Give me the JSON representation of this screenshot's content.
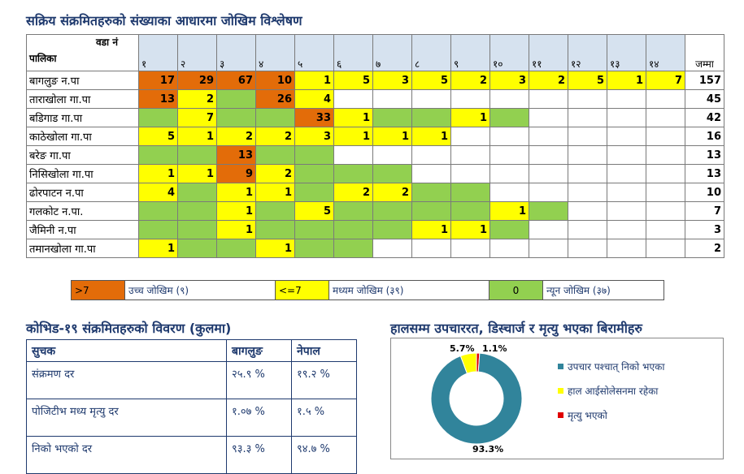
{
  "main_title": "सक्रिय संक्रमितहरुको संख्याका आधारमा जोखिम विश्लेषण",
  "corner": {
    "ward": "वडा नं",
    "palika": "पालिका"
  },
  "ward_numbers": [
    "१",
    "२",
    "३",
    "४",
    "५",
    "६",
    "७",
    "८",
    "९",
    "१०",
    "११",
    "१२",
    "१३",
    "१४"
  ],
  "total_label": "जम्मा",
  "colors": {
    "high": "#e36c09",
    "medium": "#ffff00",
    "low": "#92d050"
  },
  "rows": [
    {
      "name": "बागलुङ न.पा",
      "total": "157",
      "cells": [
        [
          "o",
          "17"
        ],
        [
          "o",
          "29"
        ],
        [
          "o",
          "67"
        ],
        [
          "o",
          "10"
        ],
        [
          "y",
          "1"
        ],
        [
          "y",
          "5"
        ],
        [
          "y",
          "3"
        ],
        [
          "y",
          "5"
        ],
        [
          "y",
          "2"
        ],
        [
          "y",
          "3"
        ],
        [
          "y",
          "2"
        ],
        [
          "y",
          "5"
        ],
        [
          "y",
          "1"
        ],
        [
          "y",
          "7"
        ]
      ]
    },
    {
      "name": "ताराखोला गा.पा",
      "total": "45",
      "cells": [
        [
          "o",
          "13"
        ],
        [
          "y",
          "2"
        ],
        [
          "g",
          ""
        ],
        [
          "o",
          "26"
        ],
        [
          "y",
          "4"
        ],
        [
          "w",
          ""
        ],
        [
          "w",
          ""
        ],
        [
          "w",
          ""
        ],
        [
          "w",
          ""
        ],
        [
          "w",
          ""
        ],
        [
          "w",
          ""
        ],
        [
          "w",
          ""
        ],
        [
          "w",
          ""
        ],
        [
          "w",
          ""
        ]
      ]
    },
    {
      "name": "बडिगाड गा.पा",
      "total": "42",
      "cells": [
        [
          "g",
          ""
        ],
        [
          "y",
          "7"
        ],
        [
          "g",
          ""
        ],
        [
          "g",
          ""
        ],
        [
          "o",
          "33"
        ],
        [
          "y",
          "1"
        ],
        [
          "g",
          ""
        ],
        [
          "g",
          ""
        ],
        [
          "y",
          "1"
        ],
        [
          "g",
          ""
        ],
        [
          "w",
          ""
        ],
        [
          "w",
          ""
        ],
        [
          "w",
          ""
        ],
        [
          "w",
          ""
        ]
      ]
    },
    {
      "name": "काठेखोला गा.पा",
      "total": "16",
      "cells": [
        [
          "y",
          "5"
        ],
        [
          "y",
          "1"
        ],
        [
          "y",
          "2"
        ],
        [
          "y",
          "2"
        ],
        [
          "y",
          "3"
        ],
        [
          "y",
          "1"
        ],
        [
          "y",
          "1"
        ],
        [
          "y",
          "1"
        ],
        [
          "w",
          ""
        ],
        [
          "w",
          ""
        ],
        [
          "w",
          ""
        ],
        [
          "w",
          ""
        ],
        [
          "w",
          ""
        ],
        [
          "w",
          ""
        ]
      ]
    },
    {
      "name": "बरेङ गा.पा",
      "total": "13",
      "cells": [
        [
          "g",
          ""
        ],
        [
          "g",
          ""
        ],
        [
          "o",
          "13"
        ],
        [
          "g",
          ""
        ],
        [
          "g",
          ""
        ],
        [
          "w",
          ""
        ],
        [
          "w",
          ""
        ],
        [
          "w",
          ""
        ],
        [
          "w",
          ""
        ],
        [
          "w",
          ""
        ],
        [
          "w",
          ""
        ],
        [
          "w",
          ""
        ],
        [
          "w",
          ""
        ],
        [
          "w",
          ""
        ]
      ]
    },
    {
      "name": "निसिखोला गा.पा",
      "total": "13",
      "cells": [
        [
          "y",
          "1"
        ],
        [
          "y",
          "1"
        ],
        [
          "o",
          "9"
        ],
        [
          "y",
          "2"
        ],
        [
          "g",
          ""
        ],
        [
          "g",
          ""
        ],
        [
          "g",
          ""
        ],
        [
          "w",
          ""
        ],
        [
          "w",
          ""
        ],
        [
          "w",
          ""
        ],
        [
          "w",
          ""
        ],
        [
          "w",
          ""
        ],
        [
          "w",
          ""
        ],
        [
          "w",
          ""
        ]
      ]
    },
    {
      "name": "ढोरपाटन न.पा",
      "total": "10",
      "cells": [
        [
          "y",
          "4"
        ],
        [
          "g",
          ""
        ],
        [
          "y",
          "1"
        ],
        [
          "y",
          "1"
        ],
        [
          "g",
          ""
        ],
        [
          "y",
          "2"
        ],
        [
          "y",
          "2"
        ],
        [
          "g",
          ""
        ],
        [
          "g",
          ""
        ],
        [
          "w",
          ""
        ],
        [
          "w",
          ""
        ],
        [
          "w",
          ""
        ],
        [
          "w",
          ""
        ],
        [
          "w",
          ""
        ]
      ]
    },
    {
      "name": "गलकोट न.पा.",
      "total": "7",
      "cells": [
        [
          "g",
          ""
        ],
        [
          "g",
          ""
        ],
        [
          "y",
          "1"
        ],
        [
          "g",
          ""
        ],
        [
          "y",
          "5"
        ],
        [
          "g",
          ""
        ],
        [
          "g",
          ""
        ],
        [
          "g",
          ""
        ],
        [
          "g",
          ""
        ],
        [
          "y",
          "1"
        ],
        [
          "g",
          ""
        ],
        [
          "w",
          ""
        ],
        [
          "w",
          ""
        ],
        [
          "w",
          ""
        ]
      ]
    },
    {
      "name": "जैमिनी न.पा",
      "total": "3",
      "cells": [
        [
          "g",
          ""
        ],
        [
          "g",
          ""
        ],
        [
          "y",
          "1"
        ],
        [
          "g",
          ""
        ],
        [
          "g",
          ""
        ],
        [
          "g",
          ""
        ],
        [
          "g",
          ""
        ],
        [
          "y",
          "1"
        ],
        [
          "y",
          "1"
        ],
        [
          "g",
          ""
        ],
        [
          "w",
          ""
        ],
        [
          "w",
          ""
        ],
        [
          "w",
          ""
        ],
        [
          "w",
          ""
        ]
      ]
    },
    {
      "name": "तमानखोला गा.पा",
      "total": "2",
      "cells": [
        [
          "y",
          "1"
        ],
        [
          "g",
          ""
        ],
        [
          "g",
          ""
        ],
        [
          "y",
          "1"
        ],
        [
          "g",
          ""
        ],
        [
          "g",
          ""
        ],
        [
          "w",
          ""
        ],
        [
          "w",
          ""
        ],
        [
          "w",
          ""
        ],
        [
          "w",
          ""
        ],
        [
          "w",
          ""
        ],
        [
          "w",
          ""
        ],
        [
          "w",
          ""
        ],
        [
          "w",
          ""
        ]
      ]
    }
  ],
  "risk_legend": {
    "high_swatch": ">7",
    "high_label": "उच्च जोखिम (९)",
    "medium_swatch": "<=7",
    "medium_label": "मध्यम जोखिम (३९)",
    "low_swatch": "0",
    "low_label": "न्यून जोखिम (३७)"
  },
  "stats_title": "कोभिड-१९ संक्रमितहरुको विवरण (कुलमा)",
  "stats": {
    "headers": [
      "सुचक",
      "बागलुङ",
      "नेपाल"
    ],
    "rows": [
      [
        "संक्रमण दर",
        "२५.९ %",
        "१९.२ %"
      ],
      [
        "पोजिटीभ मध्य मृत्यु दर",
        "१.०७ %",
        "१.५ %"
      ],
      [
        "निको भएको दर",
        "९३.३ %",
        "९४.७ %"
      ]
    ]
  },
  "donut_title": "हालसम्म उपचाररत, डिस्चार्ज र मृत्यु भएका बिरामीहरु",
  "chart_data": {
    "type": "pie",
    "title": "हालसम्म उपचाररत, डिस्चार्ज र मृत्यु भएका बिरामीहरु",
    "slices": [
      {
        "label": "उपचार पश्चात् निको भएका",
        "value": 93.3,
        "display": "93.3%",
        "color": "#31849b"
      },
      {
        "label": "हाल आईसोलेसनमा रहेका",
        "value": 5.7,
        "display": "5.7%",
        "color": "#ffff00"
      },
      {
        "label": "मृत्यु भएको",
        "value": 1.1,
        "display": "1.1%",
        "color": "#e00000"
      }
    ],
    "legend": "right"
  }
}
